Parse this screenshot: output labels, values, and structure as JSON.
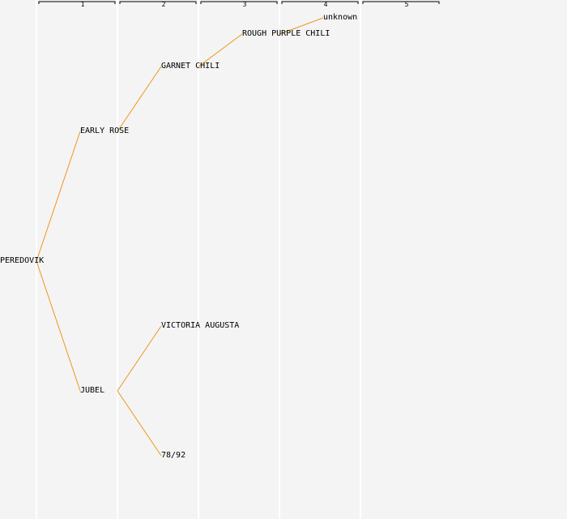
{
  "generation_labels": [
    "1",
    "2",
    "3",
    "4",
    "5"
  ],
  "nodes": {
    "root": "PEREDOVIK",
    "p1": "EARLY ROSE",
    "p2": "JUBEL",
    "p1a": "GARNET CHILI",
    "p2a": "VICTORIA AUGUSTA",
    "p2b": "78/92",
    "p1a1": "ROUGH PURPLE CHILI",
    "p1a1a": "unknown"
  },
  "colors": {
    "line": "#f0951e",
    "grid": "#ffffff",
    "background": "#f4f4f4",
    "bracket": "#000000"
  }
}
